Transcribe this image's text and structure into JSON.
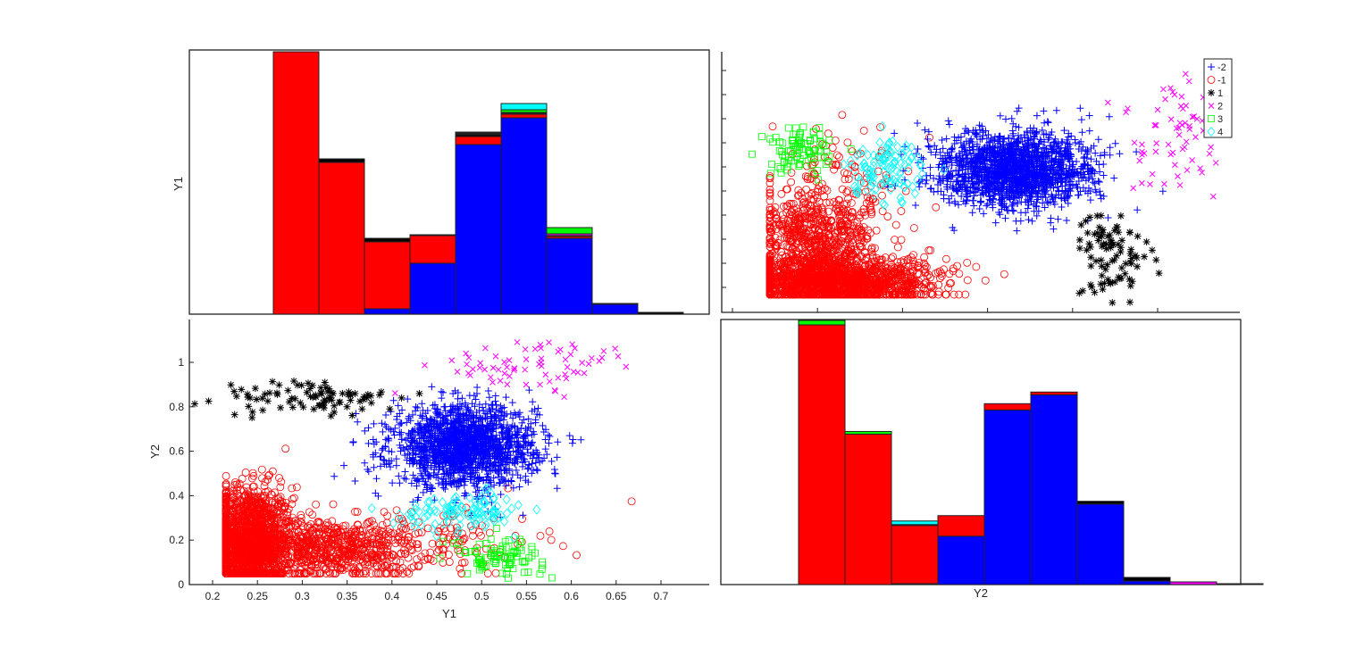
{
  "chart_data": [
    {
      "panel": "top-left",
      "type": "bar",
      "subtype": "stacked-histogram",
      "title": "",
      "xlabel": "",
      "ylabel": "Y1",
      "bin_edges": [
        0.2,
        0.25,
        0.3,
        0.35,
        0.4,
        0.45,
        0.5,
        0.55,
        0.6,
        0.65,
        0.7,
        0.75
      ],
      "stack_order": [
        "-2",
        "-1",
        "1",
        "2",
        "3",
        "4"
      ],
      "series": [
        {
          "name": "-2",
          "color": "#0000ff",
          "values": [
            0,
            0,
            0,
            6,
            57,
            190,
            220,
            85,
            11,
            0,
            0
          ]
        },
        {
          "name": "-1",
          "color": "#ff0000",
          "values": [
            0,
            294,
            170,
            75,
            31,
            9,
            4,
            2,
            0,
            0,
            0
          ]
        },
        {
          "name": "1",
          "color": "#000000",
          "values": [
            0,
            0,
            4,
            4,
            1,
            2,
            1,
            1,
            0,
            2,
            0
          ]
        },
        {
          "name": "2",
          "color": "#ff00ff",
          "values": [
            0,
            0,
            0,
            0,
            0,
            1,
            1,
            2,
            1,
            0,
            0
          ]
        },
        {
          "name": "3",
          "color": "#00ff00",
          "values": [
            0,
            0,
            0,
            0,
            0,
            1,
            3,
            7,
            0,
            0,
            0
          ]
        },
        {
          "name": "4",
          "color": "#00ffff",
          "values": [
            0,
            0,
            0,
            0,
            0,
            1,
            7,
            0,
            0,
            0,
            0
          ]
        }
      ],
      "ylim": [
        0,
        296
      ]
    },
    {
      "panel": "top-right",
      "type": "scatter",
      "title": "",
      "xlabel": "",
      "ylabel": "",
      "x_axis": "Y2",
      "y_axis": "Y1",
      "ticks_unlabeled": true,
      "legend": {
        "position": "top-right",
        "entries": [
          "-2",
          "-1",
          "1",
          "2",
          "3",
          "4"
        ]
      }
    },
    {
      "panel": "bottom-left",
      "type": "scatter",
      "title": "",
      "xlabel": "Y1",
      "ylabel": "Y2",
      "xticks": [
        0.2,
        0.25,
        0.3,
        0.35,
        0.4,
        0.45,
        0.5,
        0.55,
        0.6,
        0.65,
        0.7
      ],
      "yticks": [
        0,
        0.2,
        0.4,
        0.6,
        0.8,
        1
      ],
      "xlim": [
        0.175,
        0.75
      ],
      "ylim": [
        0,
        1.2
      ],
      "series": [
        {
          "name": "-2",
          "marker": "+",
          "color": "#0000ff",
          "clusters": [
            {
              "cx": 0.48,
              "cy": 0.62,
              "sx": 0.04,
              "sy": 0.09,
              "n": 1700
            }
          ]
        },
        {
          "name": "-1",
          "marker": "o",
          "color": "#ff0000",
          "clusters": [
            {
              "cx": 0.24,
              "cy": 0.2,
              "sx": 0.025,
              "sy": 0.12,
              "n": 1500
            },
            {
              "cx": 0.33,
              "cy": 0.16,
              "sx": 0.05,
              "sy": 0.07,
              "n": 700
            },
            {
              "cx": 0.45,
              "cy": 0.2,
              "sx": 0.06,
              "sy": 0.08,
              "n": 120
            }
          ]
        },
        {
          "name": "1",
          "marker": "*",
          "color": "#000000",
          "clusters": [
            {
              "cx": 0.31,
              "cy": 0.84,
              "sx": 0.05,
              "sy": 0.04,
              "n": 90
            }
          ]
        },
        {
          "name": "2",
          "marker": "x",
          "color": "#ff00ff",
          "clusters": [
            {
              "cx": 0.56,
              "cy": 0.98,
              "sx": 0.06,
              "sy": 0.06,
              "n": 70
            }
          ]
        },
        {
          "name": "3",
          "marker": "s",
          "color": "#00ff00",
          "clusters": [
            {
              "cx": 0.52,
              "cy": 0.13,
              "sx": 0.025,
              "sy": 0.04,
              "n": 90
            }
          ]
        },
        {
          "name": "4",
          "marker": "d",
          "color": "#00ffff",
          "clusters": [
            {
              "cx": 0.48,
              "cy": 0.33,
              "sx": 0.035,
              "sy": 0.04,
              "n": 110
            }
          ]
        }
      ]
    },
    {
      "panel": "bottom-right",
      "type": "bar",
      "subtype": "stacked-histogram",
      "title": "",
      "xlabel": "Y2",
      "ylabel": "",
      "stack_order": [
        "-2",
        "-1",
        "1",
        "2",
        "3",
        "4"
      ],
      "series": [
        {
          "name": "-2",
          "color": "#0000ff",
          "values": [
            0,
            0,
            0,
            1,
            54,
            195,
            212,
            90,
            4,
            0,
            0
          ]
        },
        {
          "name": "-1",
          "color": "#ff0000",
          "values": [
            0,
            290,
            168,
            65,
            23,
            7,
            3,
            0,
            0,
            0,
            0
          ]
        },
        {
          "name": "1",
          "color": "#000000",
          "values": [
            0,
            0,
            0,
            1,
            0,
            0,
            0,
            3,
            4,
            0,
            1
          ]
        },
        {
          "name": "2",
          "color": "#ff00ff",
          "values": [
            0,
            0,
            0,
            0,
            0,
            0,
            0,
            0,
            0,
            3,
            0
          ]
        },
        {
          "name": "3",
          "color": "#00ff00",
          "values": [
            0,
            5,
            3,
            0,
            0,
            0,
            0,
            0,
            0,
            0,
            0
          ]
        },
        {
          "name": "4",
          "color": "#00ffff",
          "values": [
            0,
            0,
            0,
            4,
            0,
            0,
            0,
            0,
            0,
            0,
            0
          ]
        }
      ],
      "ylim": [
        0,
        296
      ]
    }
  ],
  "labels": {
    "tl_ylabel": "Y1",
    "bl_ylabel": "Y2",
    "bl_xlabel": "Y1",
    "br_xlabel": "Y2",
    "bl_xticks": [
      "0.2",
      "0.25",
      "0.3",
      "0.35",
      "0.4",
      "0.45",
      "0.5",
      "0.55",
      "0.6",
      "0.65",
      "0.7"
    ],
    "bl_yticks": [
      "0",
      "0.2",
      "0.4",
      "0.6",
      "0.8",
      "1"
    ]
  },
  "legend": {
    "entries": [
      {
        "label": "-2",
        "marker": "+",
        "color": "#0000ff"
      },
      {
        "label": "-1",
        "marker": "o",
        "color": "#ff0000"
      },
      {
        "label": "1",
        "marker": "*",
        "color": "#000000"
      },
      {
        "label": "2",
        "marker": "x",
        "color": "#ff00ff"
      },
      {
        "label": "3",
        "marker": "s",
        "color": "#00ff00"
      },
      {
        "label": "4",
        "marker": "d",
        "color": "#00ffff"
      }
    ]
  }
}
